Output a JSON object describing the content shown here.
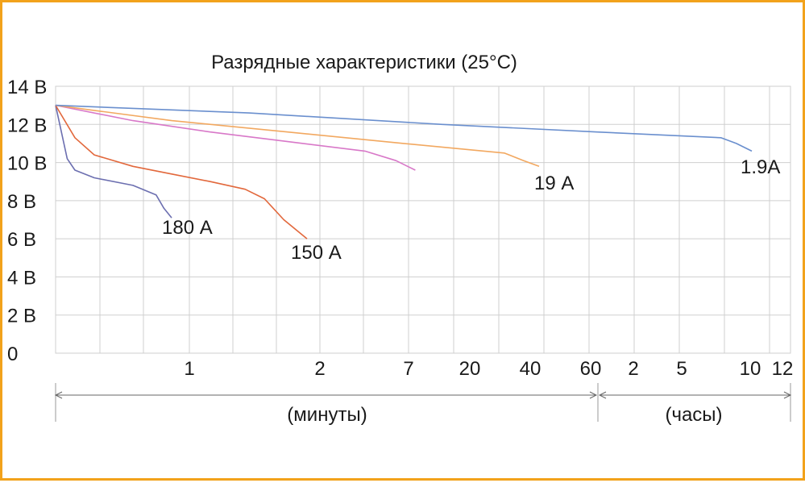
{
  "chart_data": {
    "type": "line",
    "title": "Разрядные характеристики (25°C)",
    "y_tick_labels": [
      "14 В",
      "12 В",
      "10 В",
      "8 В",
      "6 В",
      "4 В",
      "2 В",
      "0"
    ],
    "y_tick_values": [
      14,
      12,
      10,
      8,
      6,
      4,
      2,
      0
    ],
    "ylim": [
      0,
      14
    ],
    "x_tick_labels": [
      "1",
      "2",
      "7",
      "20",
      "40",
      "60",
      "2",
      "5",
      "10",
      "12"
    ],
    "x_range_labels": {
      "minutes": "(минуты)",
      "hours": "(часы)"
    },
    "grid": true,
    "series": [
      {
        "name": "180 А",
        "color": "#6c6fb0",
        "points": [
          [
            0,
            13.0
          ],
          [
            0.3,
            10.2
          ],
          [
            0.5,
            9.6
          ],
          [
            1,
            9.2
          ],
          [
            2,
            8.8
          ],
          [
            2.6,
            8.3
          ],
          [
            2.8,
            7.6
          ],
          [
            3.0,
            7.1
          ]
        ]
      },
      {
        "name": "150 А",
        "color": "#e2683c",
        "points": [
          [
            0,
            13.0
          ],
          [
            0.5,
            11.3
          ],
          [
            1,
            10.4
          ],
          [
            2,
            9.8
          ],
          [
            3,
            9.4
          ],
          [
            4,
            9.0
          ],
          [
            4.9,
            8.6
          ],
          [
            5.4,
            8.1
          ],
          [
            5.9,
            7.0
          ],
          [
            6.5,
            6.0
          ]
        ]
      },
      {
        "name": "",
        "color": "#d878c8",
        "points": [
          [
            0,
            13.0
          ],
          [
            2,
            12.2
          ],
          [
            4,
            11.6
          ],
          [
            6,
            11.1
          ],
          [
            8,
            10.6
          ],
          [
            8.8,
            10.1
          ],
          [
            9.3,
            9.6
          ]
        ]
      },
      {
        "name": "19 А",
        "color": "#f2a860",
        "points": [
          [
            0,
            13.0
          ],
          [
            3,
            12.2
          ],
          [
            6,
            11.6
          ],
          [
            9,
            11.0
          ],
          [
            11.6,
            10.5
          ],
          [
            12.1,
            10.1
          ],
          [
            12.5,
            9.8
          ]
        ]
      },
      {
        "name": "1.9A",
        "color": "#6a8fce",
        "points": [
          [
            0,
            13.0
          ],
          [
            5,
            12.6
          ],
          [
            10,
            12.0
          ],
          [
            14,
            11.6
          ],
          [
            17.2,
            11.3
          ],
          [
            17.6,
            11.0
          ],
          [
            18,
            10.6
          ]
        ]
      }
    ]
  }
}
